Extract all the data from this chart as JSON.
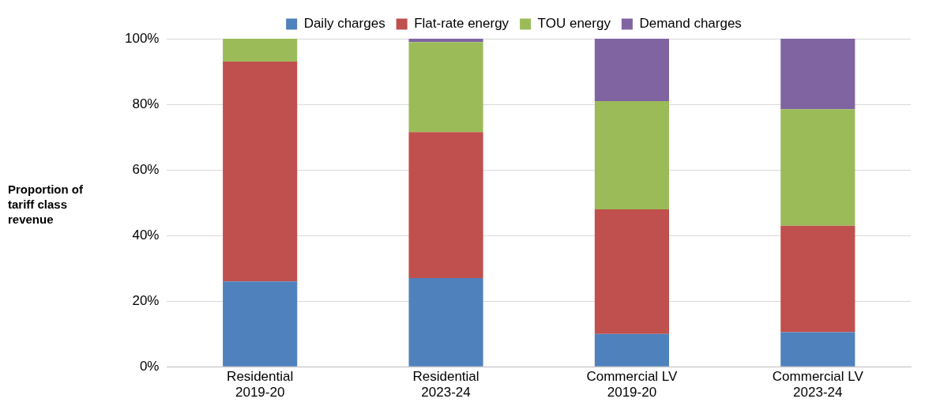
{
  "chart_data": {
    "type": "bar",
    "stacked": true,
    "ylabel": "Proportion of tariff class revenue",
    "categories": [
      "Residential\n2019-20",
      "Residential\n2023-24",
      "Commercial LV\n2019-20",
      "Commercial LV\n2023-24"
    ],
    "series": [
      {
        "name": "Daily charges",
        "color": "#4f81bd",
        "values": [
          26,
          27,
          10,
          10.5
        ]
      },
      {
        "name": "Flat-rate energy",
        "color": "#c0504d",
        "values": [
          67,
          44.5,
          38,
          32.5
        ]
      },
      {
        "name": "TOU energy",
        "color": "#9bbb59",
        "values": [
          7,
          27.5,
          33,
          35.5
        ]
      },
      {
        "name": "Demand charges",
        "color": "#8064a2",
        "values": [
          0,
          1,
          19,
          21.5
        ]
      }
    ],
    "ylim": [
      0,
      100
    ],
    "yticks": [
      {
        "value": 0,
        "label": "0%"
      },
      {
        "value": 20,
        "label": "20%"
      },
      {
        "value": 40,
        "label": "40%"
      },
      {
        "value": 60,
        "label": "60%"
      },
      {
        "value": 80,
        "label": "80%"
      },
      {
        "value": 100,
        "label": "100%"
      }
    ],
    "grid": "y",
    "legend": "top"
  }
}
